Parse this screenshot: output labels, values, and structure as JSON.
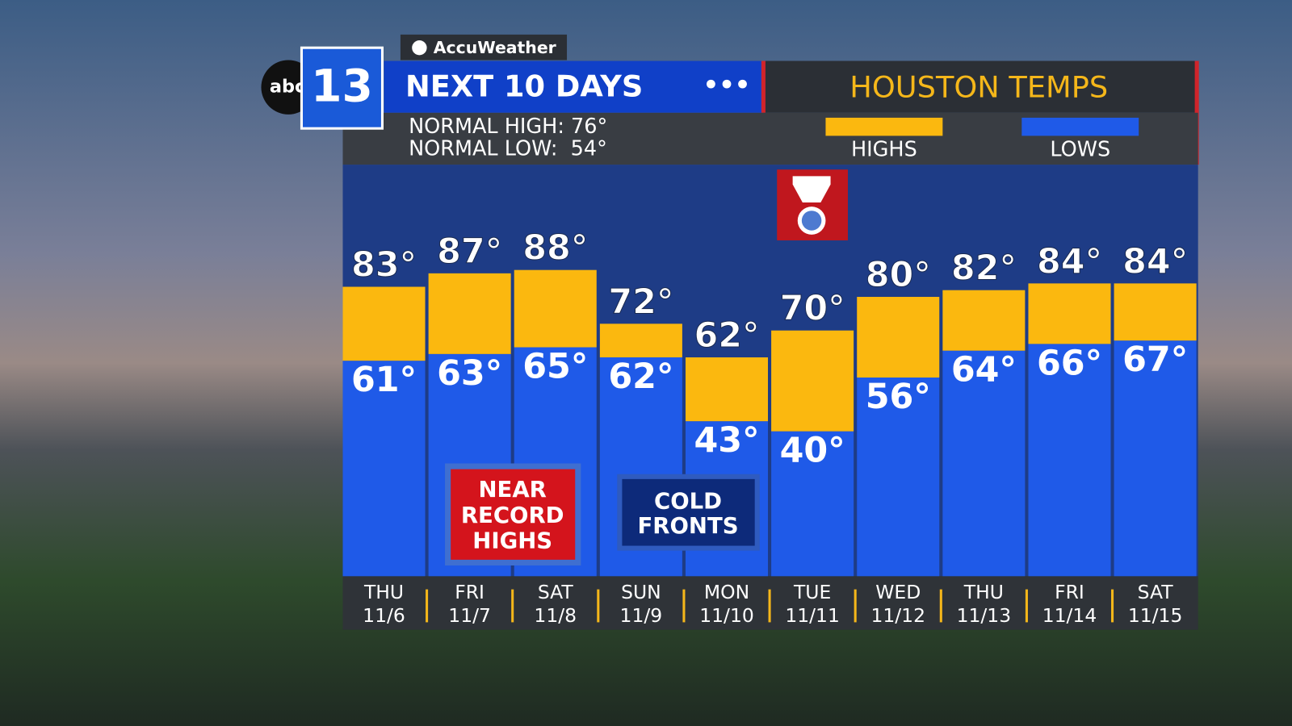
{
  "brand": {
    "network": "abc",
    "channel": "13",
    "provider": "AccuWeather"
  },
  "chart_data": {
    "type": "range",
    "title": "NEXT 10 DAYS",
    "subtitle": "HOUSTON TEMPS",
    "normals": [
      "NORMAL HIGH: 76°",
      "NORMAL LOW:  54°"
    ],
    "categories": [
      "THU",
      "FRI",
      "SAT",
      "SUN",
      "MON",
      "TUE",
      "WED",
      "THU",
      "FRI",
      "SAT"
    ],
    "dates": [
      "11/6",
      "11/7",
      "11/8",
      "11/9",
      "11/10",
      "11/11",
      "11/12",
      "11/13",
      "11/14",
      "11/15"
    ],
    "series": [
      {
        "name": "HIGHS",
        "color": "#fbb80f",
        "values": [
          83,
          87,
          88,
          72,
          62,
          70,
          80,
          82,
          84,
          84
        ],
        "value_labels": [
          "83°",
          "87°",
          "88°",
          "72°",
          "62°",
          "70°",
          "80°",
          "82°",
          "84°",
          "84°"
        ]
      },
      {
        "name": "LOWS",
        "color": "#1f5ae8",
        "values": [
          61,
          63,
          65,
          62,
          43,
          40,
          56,
          64,
          66,
          67
        ],
        "value_labels": [
          "61°",
          "63°",
          "65°",
          "62°",
          "43°",
          "40°",
          "56°",
          "64°",
          "66°",
          "67°"
        ]
      }
    ],
    "annotations": [
      "NEAR RECORD HIGHS",
      "COLD FRONTS"
    ]
  }
}
